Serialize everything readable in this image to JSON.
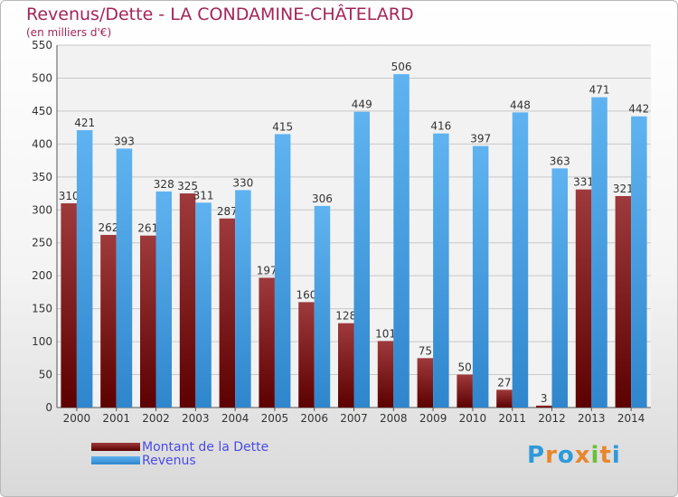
{
  "chart_data": {
    "type": "bar",
    "title": "Revenus/Dette - LA CONDAMINE-CHÂTELARD",
    "subtitle": "(en milliers d'€)",
    "categories": [
      "2000",
      "2001",
      "2002",
      "2003",
      "2004",
      "2005",
      "2006",
      "2007",
      "2008",
      "2009",
      "2010",
      "2011",
      "2012",
      "2013",
      "2014"
    ],
    "series": [
      {
        "name": "Montant de la Dette",
        "values": [
          310,
          262,
          261,
          325,
          287,
          197,
          160,
          128,
          101,
          75,
          50,
          27,
          3,
          331,
          321
        ],
        "color": "#7a1c1e"
      },
      {
        "name": "Revenus",
        "values": [
          421,
          393,
          328,
          311,
          330,
          415,
          306,
          449,
          506,
          416,
          397,
          448,
          363,
          471,
          442
        ],
        "color": "#4aa3e6"
      }
    ],
    "ylim": [
      0,
      550
    ],
    "yticks": [
      0,
      50,
      100,
      150,
      200,
      250,
      300,
      350,
      400,
      450,
      500,
      550
    ],
    "grid": true,
    "legend_position": "bottom-left"
  },
  "branding": {
    "logo_letters": [
      "P",
      "r",
      "o",
      "x",
      "i",
      "t",
      "i"
    ]
  }
}
